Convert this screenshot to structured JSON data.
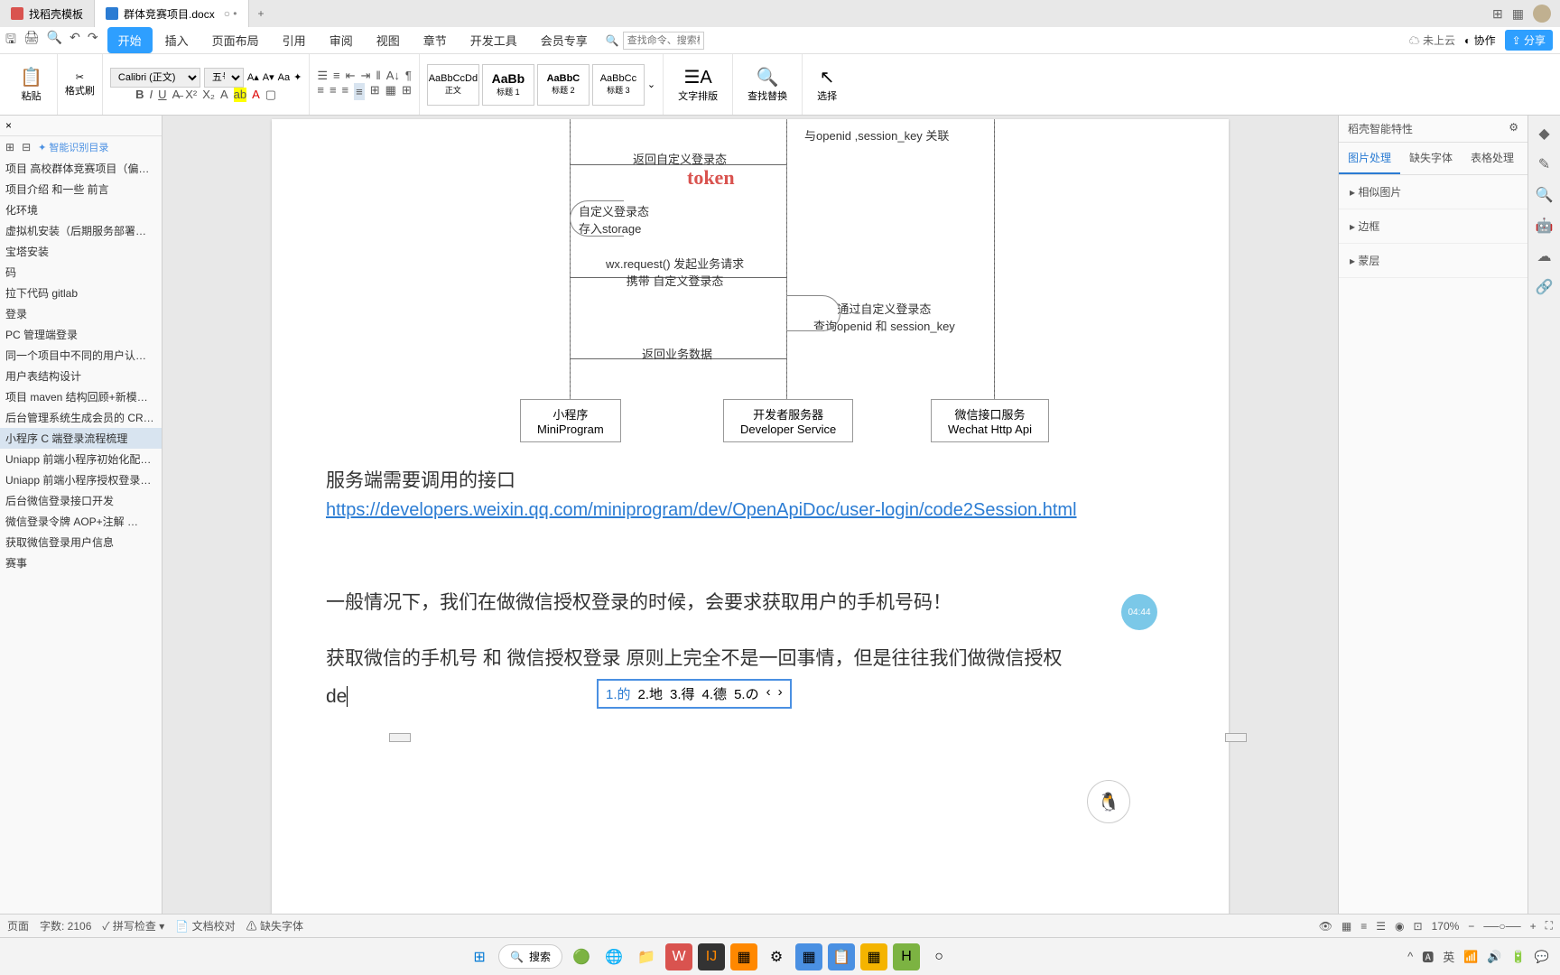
{
  "tabs": {
    "tab1": "找稻壳模板",
    "tab2": "群体竞赛项目.docx"
  },
  "menu": {
    "start": "开始",
    "insert": "插入",
    "layout": "页面布局",
    "ref": "引用",
    "review": "审阅",
    "view": "视图",
    "section": "章节",
    "dev": "开发工具",
    "vip": "会员专享",
    "search_placeholder": "查找命令、搜索模板",
    "not_cloud": "未上云",
    "collab": "协作",
    "share": "分享"
  },
  "ribbon": {
    "paste": "粘贴",
    "format_brush": "格式刷",
    "font_name": "Calibri (正文)",
    "font_size": "五号",
    "style_normal_preview": "AaBbCcDd",
    "style_normal": "正文",
    "style_h1_preview": "AaBb",
    "style_h1": "标题 1",
    "style_h2_preview": "AaBbC",
    "style_h2": "标题 2",
    "style_h3_preview": "AaBbCc",
    "style_h3": "标题 3",
    "text_layout": "文字排版",
    "find_replace": "查找替换",
    "select": "选择"
  },
  "outline": {
    "ai_title": "智能识别目录",
    "items": [
      "项目 高校群体竞赛项目（偏…",
      "项目介绍 和一些 前言",
      "化环境",
      "虚拟机安装（后期服务部署也…",
      "宝塔安装",
      "码",
      "拉下代码 gitlab",
      "登录",
      "PC 管理端登录",
      "同一个项目中不同的用户认证…",
      "用户表结构设计",
      "项目 maven 结构回顾+新模…",
      "后台管理系统生成会员的 CR…",
      "小程序 C 端登录流程梳理",
      "Uniapp 前端小程序初始化配…",
      "Uniapp 前端小程序授权登录…",
      "后台微信登录接口开发",
      "微信登录令牌  AOP+注解 …",
      "获取微信登录用户信息",
      "赛事"
    ],
    "active_index": 13
  },
  "diagram": {
    "label_assoc": "与openid ,session_key 关联",
    "label_return_login": "返回自定义登录态",
    "token_mark": "token",
    "label_store": "自定义登录态\n存入storage",
    "label_wx_request": "wx.request() 发起业务请求\n携带 自定义登录态",
    "label_query": "通过自定义登录态\n查询openid 和 session_key",
    "label_return_data": "返回业务数据",
    "box1_cn": "小程序",
    "box1_en": "MiniProgram",
    "box2_cn": "开发者服务器",
    "box2_en": "Developer Service",
    "box3_cn": "微信接口服务",
    "box3_en": "Wechat Http Api"
  },
  "doc": {
    "p1": "服务端需要调用的接口",
    "link": "https://developers.weixin.qq.com/miniprogram/dev/OpenApiDoc/user-login/code2Session.html",
    "p2": "一般情况下，我们在做微信授权登录的时候，会要求获取用户的手机号码！",
    "p3a": "获取微信的手机号 和 微信授权登录 原则上完全不是一回事情，但是往往我们做微信授权",
    "p3b": "de"
  },
  "ime": {
    "c1": "1.的",
    "c2": "2.地",
    "c3": "3.得",
    "c4": "4.德",
    "c5": "5.の"
  },
  "props": {
    "title": "稻壳智能特性",
    "tab_img": "图片处理",
    "tab_font": "缺失字体",
    "tab_table": "表格处理",
    "sec_related": "相似图片",
    "sec_border": "边框",
    "sec_layer": "蒙层"
  },
  "status": {
    "page": "页面",
    "words": "字数: 2106",
    "spell": "拼写检查",
    "proof": "文档校对",
    "missing_font": "缺失字体",
    "zoom": "170%"
  },
  "taskbar": {
    "search": "搜索"
  },
  "timer": "04:44"
}
